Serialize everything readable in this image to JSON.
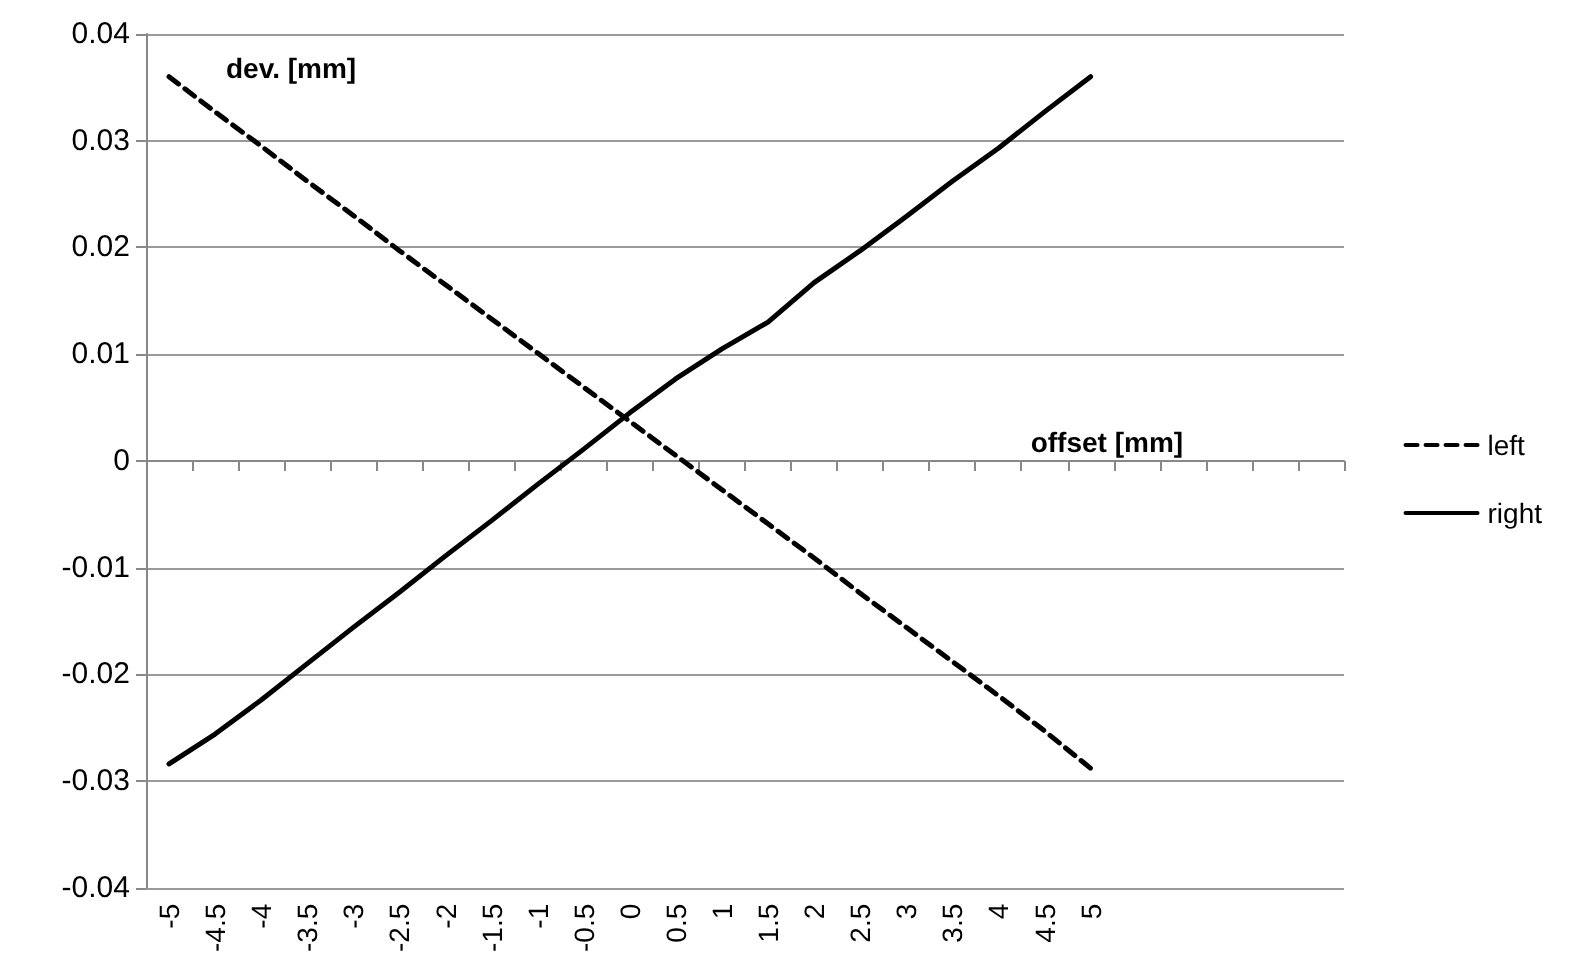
{
  "chart_data": {
    "type": "line",
    "xlabel": "offset [mm]",
    "ylabel": "dev. [mm]",
    "categories": [
      "-5",
      "-4.5",
      "-4",
      "-3.5",
      "-3",
      "-2.5",
      "-2",
      "-1.5",
      "-1",
      "-0.5",
      "0",
      "0.5",
      "1",
      "1.5",
      "2",
      "2.5",
      "3",
      "3.5",
      "4",
      "4.5",
      "5",
      null,
      null,
      null,
      null,
      null
    ],
    "series": [
      {
        "name": "left",
        "color": "#000000",
        "line_style": "dashed",
        "values": [
          0.036,
          0.0327,
          0.0295,
          0.0262,
          0.023,
          0.0197,
          0.0165,
          0.0133,
          0.0101,
          0.0069,
          0.0037,
          0.0005,
          -0.0027,
          -0.0059,
          -0.0091,
          -0.0124,
          -0.0156,
          -0.0188,
          -0.022,
          -0.0253,
          -0.0288,
          null,
          null,
          null,
          null,
          null
        ]
      },
      {
        "name": "right",
        "color": "#000000",
        "line_style": "solid",
        "values": [
          -0.0284,
          -0.0256,
          -0.0224,
          -0.019,
          -0.0156,
          -0.0123,
          -0.0089,
          -0.0056,
          -0.0022,
          0.0011,
          0.0045,
          0.0077,
          0.0105,
          0.013,
          0.0167,
          0.0197,
          0.0229,
          0.0262,
          0.0293,
          0.0327,
          0.036,
          null,
          null,
          null,
          null,
          null
        ]
      }
    ],
    "ylim": [
      -0.04,
      0.04
    ],
    "yticks": [
      -0.04,
      -0.03,
      -0.02,
      -0.01,
      0,
      0.01,
      0.02,
      0.03,
      0.04
    ],
    "grid": "y",
    "legend": "right",
    "marker": "none"
  }
}
